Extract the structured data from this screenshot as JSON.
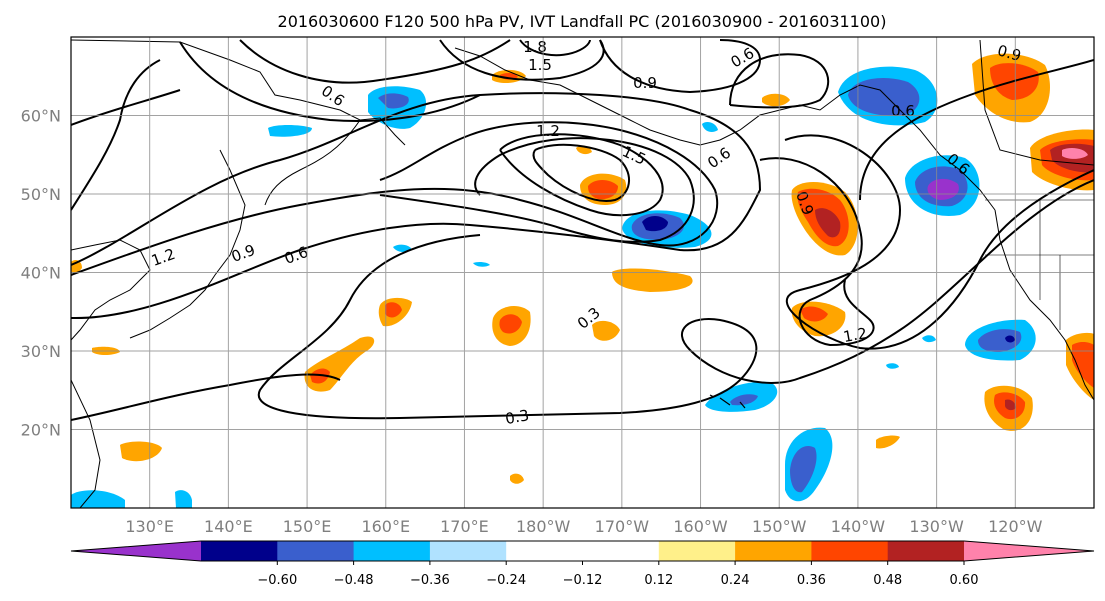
{
  "title": "2016030600 F120 500 hPa PV, IVT Landfall PC (2016030900 - 2016031100)",
  "map": {
    "lon_range": [
      120,
      250
    ],
    "lat_range": [
      10,
      70
    ],
    "grid": true,
    "lat_ticks": [
      "60°N",
      "50°N",
      "40°N",
      "30°N",
      "20°N"
    ],
    "lon_ticks": [
      "130°E",
      "140°E",
      "150°E",
      "160°E",
      "170°E",
      "180°W",
      "170°W",
      "160°W",
      "150°W",
      "140°W",
      "130°W",
      "120°W"
    ],
    "contour_labels": [
      "1.8",
      "1.5",
      "0.6",
      "0.9",
      "0.6",
      "0.9",
      "0.6",
      "1.2",
      "1.5",
      "0.6",
      "0.9",
      "0.6",
      "0.9",
      "1.2",
      "0.6",
      "0.3",
      "1.2",
      "0.3"
    ]
  },
  "colorbar": {
    "colors": [
      "#9932cc",
      "#00008b",
      "#3a5fcd",
      "#00bfff",
      "#b0e2ff",
      "#ffffff",
      "#ffffff",
      "#fff08a",
      "#ffa500",
      "#ff4500",
      "#b22222",
      "#ff82ab"
    ],
    "tick_labels": [
      "−0.60",
      "−0.48",
      "−0.36",
      "−0.24",
      "−0.12",
      "0.12",
      "0.24",
      "0.36",
      "0.48",
      "0.60"
    ],
    "extend": "both"
  }
}
